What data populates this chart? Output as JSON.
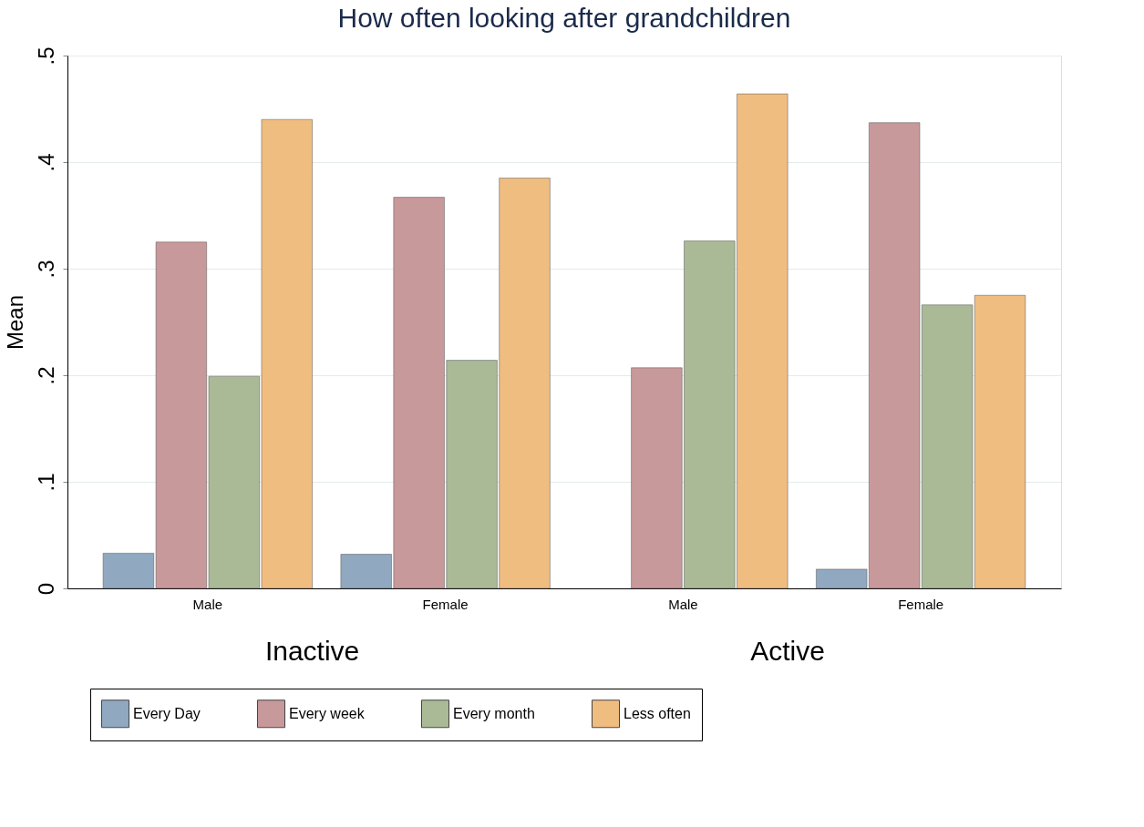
{
  "chart_data": {
    "type": "bar",
    "title": "How often looking after grandchildren",
    "ylabel": "Mean",
    "categories": [
      "Male",
      "Female",
      "Male",
      "Female"
    ],
    "annotations": [
      "Inactive",
      "Active"
    ],
    "series": [
      {
        "name": "Every Day",
        "color": "#90a8c0",
        "values": [
          0.033,
          0.032,
          null,
          0.018
        ]
      },
      {
        "name": "Every week",
        "color": "#c8999b",
        "values": [
          0.325,
          0.367,
          0.207,
          0.437
        ]
      },
      {
        "name": "Every month",
        "color": "#aaba96",
        "values": [
          0.199,
          0.214,
          0.326,
          0.266
        ]
      },
      {
        "name": "Less often",
        "color": "#f0bd80",
        "values": [
          0.44,
          0.385,
          0.464,
          0.275
        ]
      }
    ],
    "ylim": [
      0,
      0.5
    ],
    "yticks": [
      0,
      {
        "value": 0.1,
        "label": ".1"
      },
      {
        "value": 0.2,
        "label": ".2"
      },
      {
        "value": 0.3,
        "label": ".3"
      },
      {
        "value": 0.4,
        "label": ".4"
      },
      {
        "value": 0.5,
        "label": ".5"
      }
    ],
    "grid": "y",
    "legend": "bottom"
  }
}
